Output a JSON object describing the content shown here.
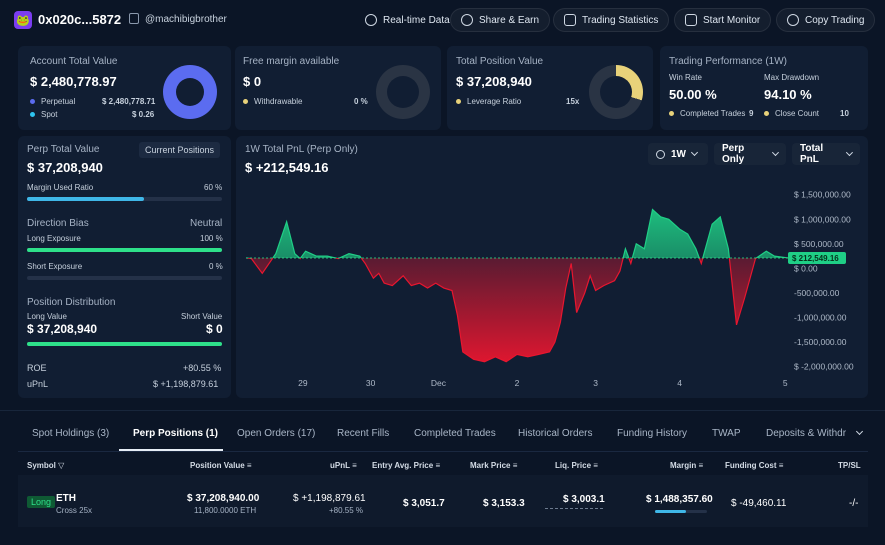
{
  "header": {
    "wallet_icon": "frog-avatar-icon",
    "address": "0x020c...5872",
    "handle": "@machibigbrother",
    "buttons": [
      "Real-time Data",
      "Share & Earn",
      "Trading Statistics",
      "Start Monitor",
      "Copy Trading"
    ]
  },
  "account": {
    "title": "Account Total Value",
    "value": "$ 2,480,778.97",
    "rows": [
      {
        "label": "Perpetual",
        "value": "$ 2,480,778.71",
        "color": "#5b6cf0"
      },
      {
        "label": "Spot",
        "value": "$ 0.26",
        "color": "#2ec4f0"
      }
    ],
    "perp_share": 1.0
  },
  "margin": {
    "title": "Free margin available",
    "value": "$ 0",
    "row_label": "Withdrawable",
    "row_value": "0 %",
    "row_color": "#e8d27a",
    "fraction": 0.0
  },
  "position": {
    "title": "Total Position Value",
    "value": "$ 37,208,940",
    "row_label": "Leverage Ratio",
    "row_value": "15x",
    "row_color": "#e8d27a",
    "fraction": 0.3
  },
  "performance": {
    "title": "Trading Performance (1W)",
    "win_rate_label": "Win Rate",
    "win_rate": "50.00 %",
    "drawdown_label": "Max Drawdown",
    "drawdown": "94.10 %",
    "completed_label": "Completed Trades",
    "completed": "9",
    "close_label": "Close Count",
    "close": "10"
  },
  "perp": {
    "title": "Perp Total Value",
    "button": "Current Positions",
    "value": "$ 37,208,940",
    "margin_label": "Margin Used Ratio",
    "margin_value": "60 %",
    "margin_fraction": 0.6,
    "bias_label": "Direction Bias",
    "bias_value": "Neutral",
    "long_label": "Long Exposure",
    "long_value": "100 %",
    "long_fraction": 1.0,
    "short_label": "Short Exposure",
    "short_value": "0 %",
    "short_fraction": 0.0,
    "dist_label": "Position Distribution",
    "long_val_label": "Long Value",
    "short_val_label": "Short Value",
    "long_val": "$ 37,208,940",
    "short_val": "$ 0",
    "dist_fraction": 1.0,
    "roe_label": "ROE",
    "roe": "+80.55 %",
    "upnl_label": "uPnL",
    "upnl": "$ +1,198,879.61"
  },
  "pnl_panel": {
    "title": "1W Total PnL (Perp Only)",
    "value": "$ +212,549.16",
    "dropdowns": [
      "1W",
      "Perp Only",
      "Total PnL"
    ],
    "current_label": "$ 212,549.16"
  },
  "chart_data": {
    "type": "area",
    "y_ticks": [
      "$ 1,500,000.00",
      "$ 1,000,000.00",
      "$ 500,000.00",
      "$ 0.00",
      "-500,000.00",
      "-1,000,000.00",
      "-1,500,000.00",
      "$ -2,000,000.00"
    ],
    "y_tick_values": [
      1500000,
      1000000,
      500000,
      0,
      -500000,
      -1000000,
      -1500000,
      -2000000
    ],
    "ylim": [
      -2150000,
      1800000
    ],
    "x_ticks": [
      "29",
      "30",
      "Dec",
      "2",
      "3",
      "4",
      "5"
    ],
    "x_tick_positions": [
      0.105,
      0.23,
      0.355,
      0.5,
      0.645,
      0.8,
      0.995
    ],
    "baseline": 212549.16,
    "points": [
      [
        0.0,
        212549
      ],
      [
        0.01,
        200000
      ],
      [
        0.03,
        -100000
      ],
      [
        0.055,
        300000
      ],
      [
        0.075,
        950000
      ],
      [
        0.09,
        300000
      ],
      [
        0.1,
        200000
      ],
      [
        0.11,
        350000
      ],
      [
        0.13,
        250000
      ],
      [
        0.15,
        250000
      ],
      [
        0.17,
        200000
      ],
      [
        0.19,
        300000
      ],
      [
        0.21,
        250000
      ],
      [
        0.22,
        100000
      ],
      [
        0.235,
        -200000
      ],
      [
        0.245,
        -100000
      ],
      [
        0.255,
        -300000
      ],
      [
        0.27,
        -350000
      ],
      [
        0.29,
        -150000
      ],
      [
        0.305,
        -350000
      ],
      [
        0.32,
        -300000
      ],
      [
        0.335,
        -400000
      ],
      [
        0.35,
        -300000
      ],
      [
        0.365,
        -400000
      ],
      [
        0.38,
        -450000
      ],
      [
        0.39,
        -950000
      ],
      [
        0.4,
        -1700000
      ],
      [
        0.42,
        -1850000
      ],
      [
        0.44,
        -1900000
      ],
      [
        0.46,
        -1800000
      ],
      [
        0.48,
        -1900000
      ],
      [
        0.5,
        -1750000
      ],
      [
        0.52,
        -1800000
      ],
      [
        0.54,
        -1750000
      ],
      [
        0.56,
        -1700000
      ],
      [
        0.57,
        -1500000
      ],
      [
        0.58,
        -1100000
      ],
      [
        0.59,
        -400000
      ],
      [
        0.6,
        100000
      ],
      [
        0.61,
        -900000
      ],
      [
        0.625,
        -500000
      ],
      [
        0.635,
        -150000
      ],
      [
        0.645,
        -450000
      ],
      [
        0.66,
        -350000
      ],
      [
        0.68,
        -250000
      ],
      [
        0.69,
        -50000
      ],
      [
        0.7,
        400000
      ],
      [
        0.71,
        100000
      ],
      [
        0.72,
        500000
      ],
      [
        0.735,
        400000
      ],
      [
        0.75,
        1200000
      ],
      [
        0.765,
        1050000
      ],
      [
        0.78,
        1000000
      ],
      [
        0.8,
        800000
      ],
      [
        0.815,
        700000
      ],
      [
        0.83,
        400000
      ],
      [
        0.84,
        100000
      ],
      [
        0.86,
        900000
      ],
      [
        0.875,
        1050000
      ],
      [
        0.89,
        400000
      ],
      [
        0.905,
        -1150000
      ],
      [
        0.92,
        -600000
      ],
      [
        0.94,
        200000
      ],
      [
        0.96,
        350000
      ],
      [
        0.975,
        250000
      ],
      [
        1.0,
        212549
      ]
    ],
    "up_color": "#1fcf86",
    "down_color": "#e8162f",
    "grid": false
  },
  "tabs": [
    "Spot Holdings (3)",
    "Perp Positions (1)",
    "Open Orders (17)",
    "Recent Fills",
    "Completed Trades",
    "Historical Orders",
    "Funding History",
    "TWAP",
    "Deposits & Withdra"
  ],
  "table": {
    "headers": [
      "Symbol",
      "Position Value",
      "uPnL",
      "Entry Avg. Price",
      "Mark Price",
      "Liq. Price",
      "Margin",
      "Funding Cost",
      "TP/SL"
    ],
    "row": {
      "side": "Long",
      "symbol": "ETH",
      "sub": "Cross 25x",
      "value": "$ 37,208,940.00",
      "value_sub": "11,800.0000 ETH",
      "upnl": "$ +1,198,879.61",
      "upnl_pct": "+80.55 %",
      "entry": "$ 3,051.7",
      "mark": "$ 3,153.3",
      "liq": "$ 3,003.1",
      "margin": "$ 1,488,357.60",
      "margin_fraction": 0.6,
      "funding": "$ -49,460.11",
      "tpsl": "-/-"
    }
  }
}
